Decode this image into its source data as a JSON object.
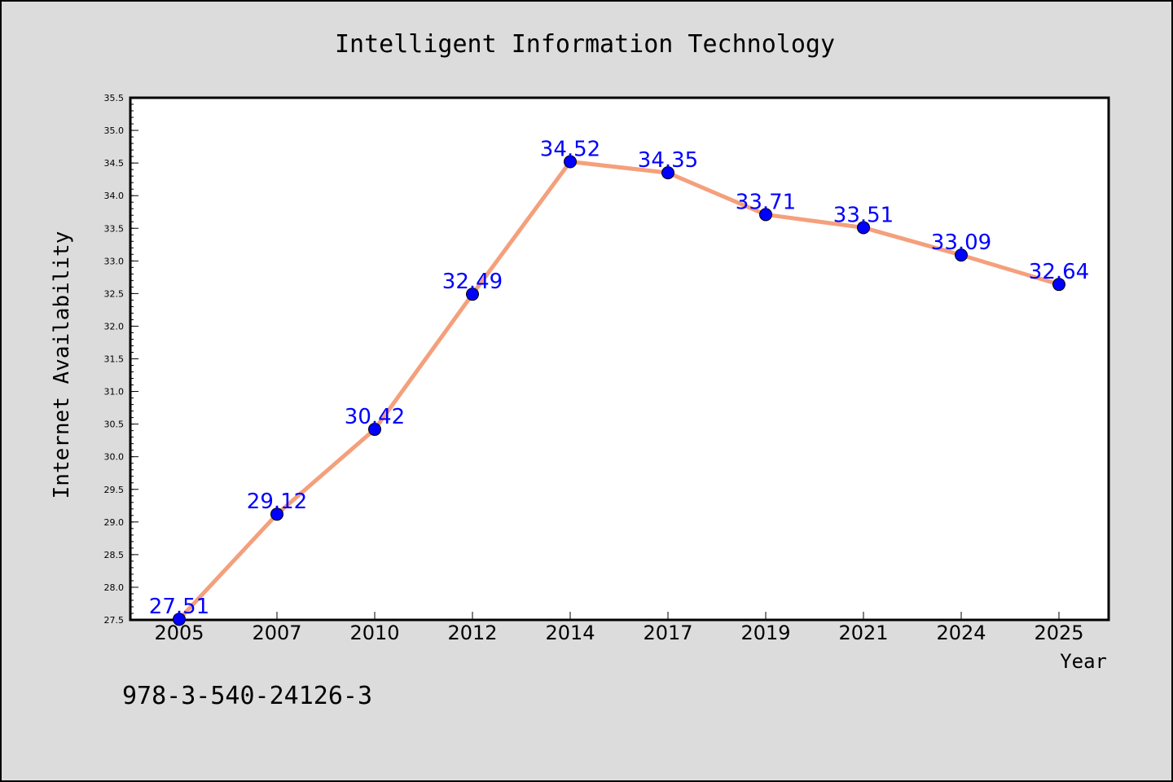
{
  "footer_text": "978-3-540-24126-3",
  "colors": {
    "background": "#dcdcdc",
    "plot_background": "#ffffff",
    "line": "#f4a07c",
    "marker": "#0000ff",
    "data_label": "#0000ff"
  },
  "chart_data": {
    "type": "line",
    "title": "Intelligent Information Technology",
    "xlabel": "Year",
    "ylabel": "Internet Availability",
    "categories": [
      "2005",
      "2007",
      "2010",
      "2012",
      "2014",
      "2017",
      "2019",
      "2021",
      "2024",
      "2025"
    ],
    "series": [
      {
        "values": [
          27.51,
          29.12,
          30.42,
          32.49,
          34.52,
          34.35,
          33.71,
          33.51,
          33.09,
          32.64
        ]
      }
    ],
    "data_labels": [
      "27.51",
      "29.12",
      "30.42",
      "32.49",
      "34.52",
      "34.35",
      "33.71",
      "33.51",
      "33.09",
      "32.64"
    ],
    "ylim": [
      27.5,
      35.5
    ],
    "yticks": [
      "27.5",
      "28.0",
      "28.5",
      "29.0",
      "29.5",
      "30.0",
      "30.5",
      "31.0",
      "31.5",
      "32.0",
      "32.5",
      "33.0",
      "33.5",
      "34.0",
      "34.5",
      "35.0",
      "35.5"
    ],
    "grid": false,
    "legend": "none"
  }
}
